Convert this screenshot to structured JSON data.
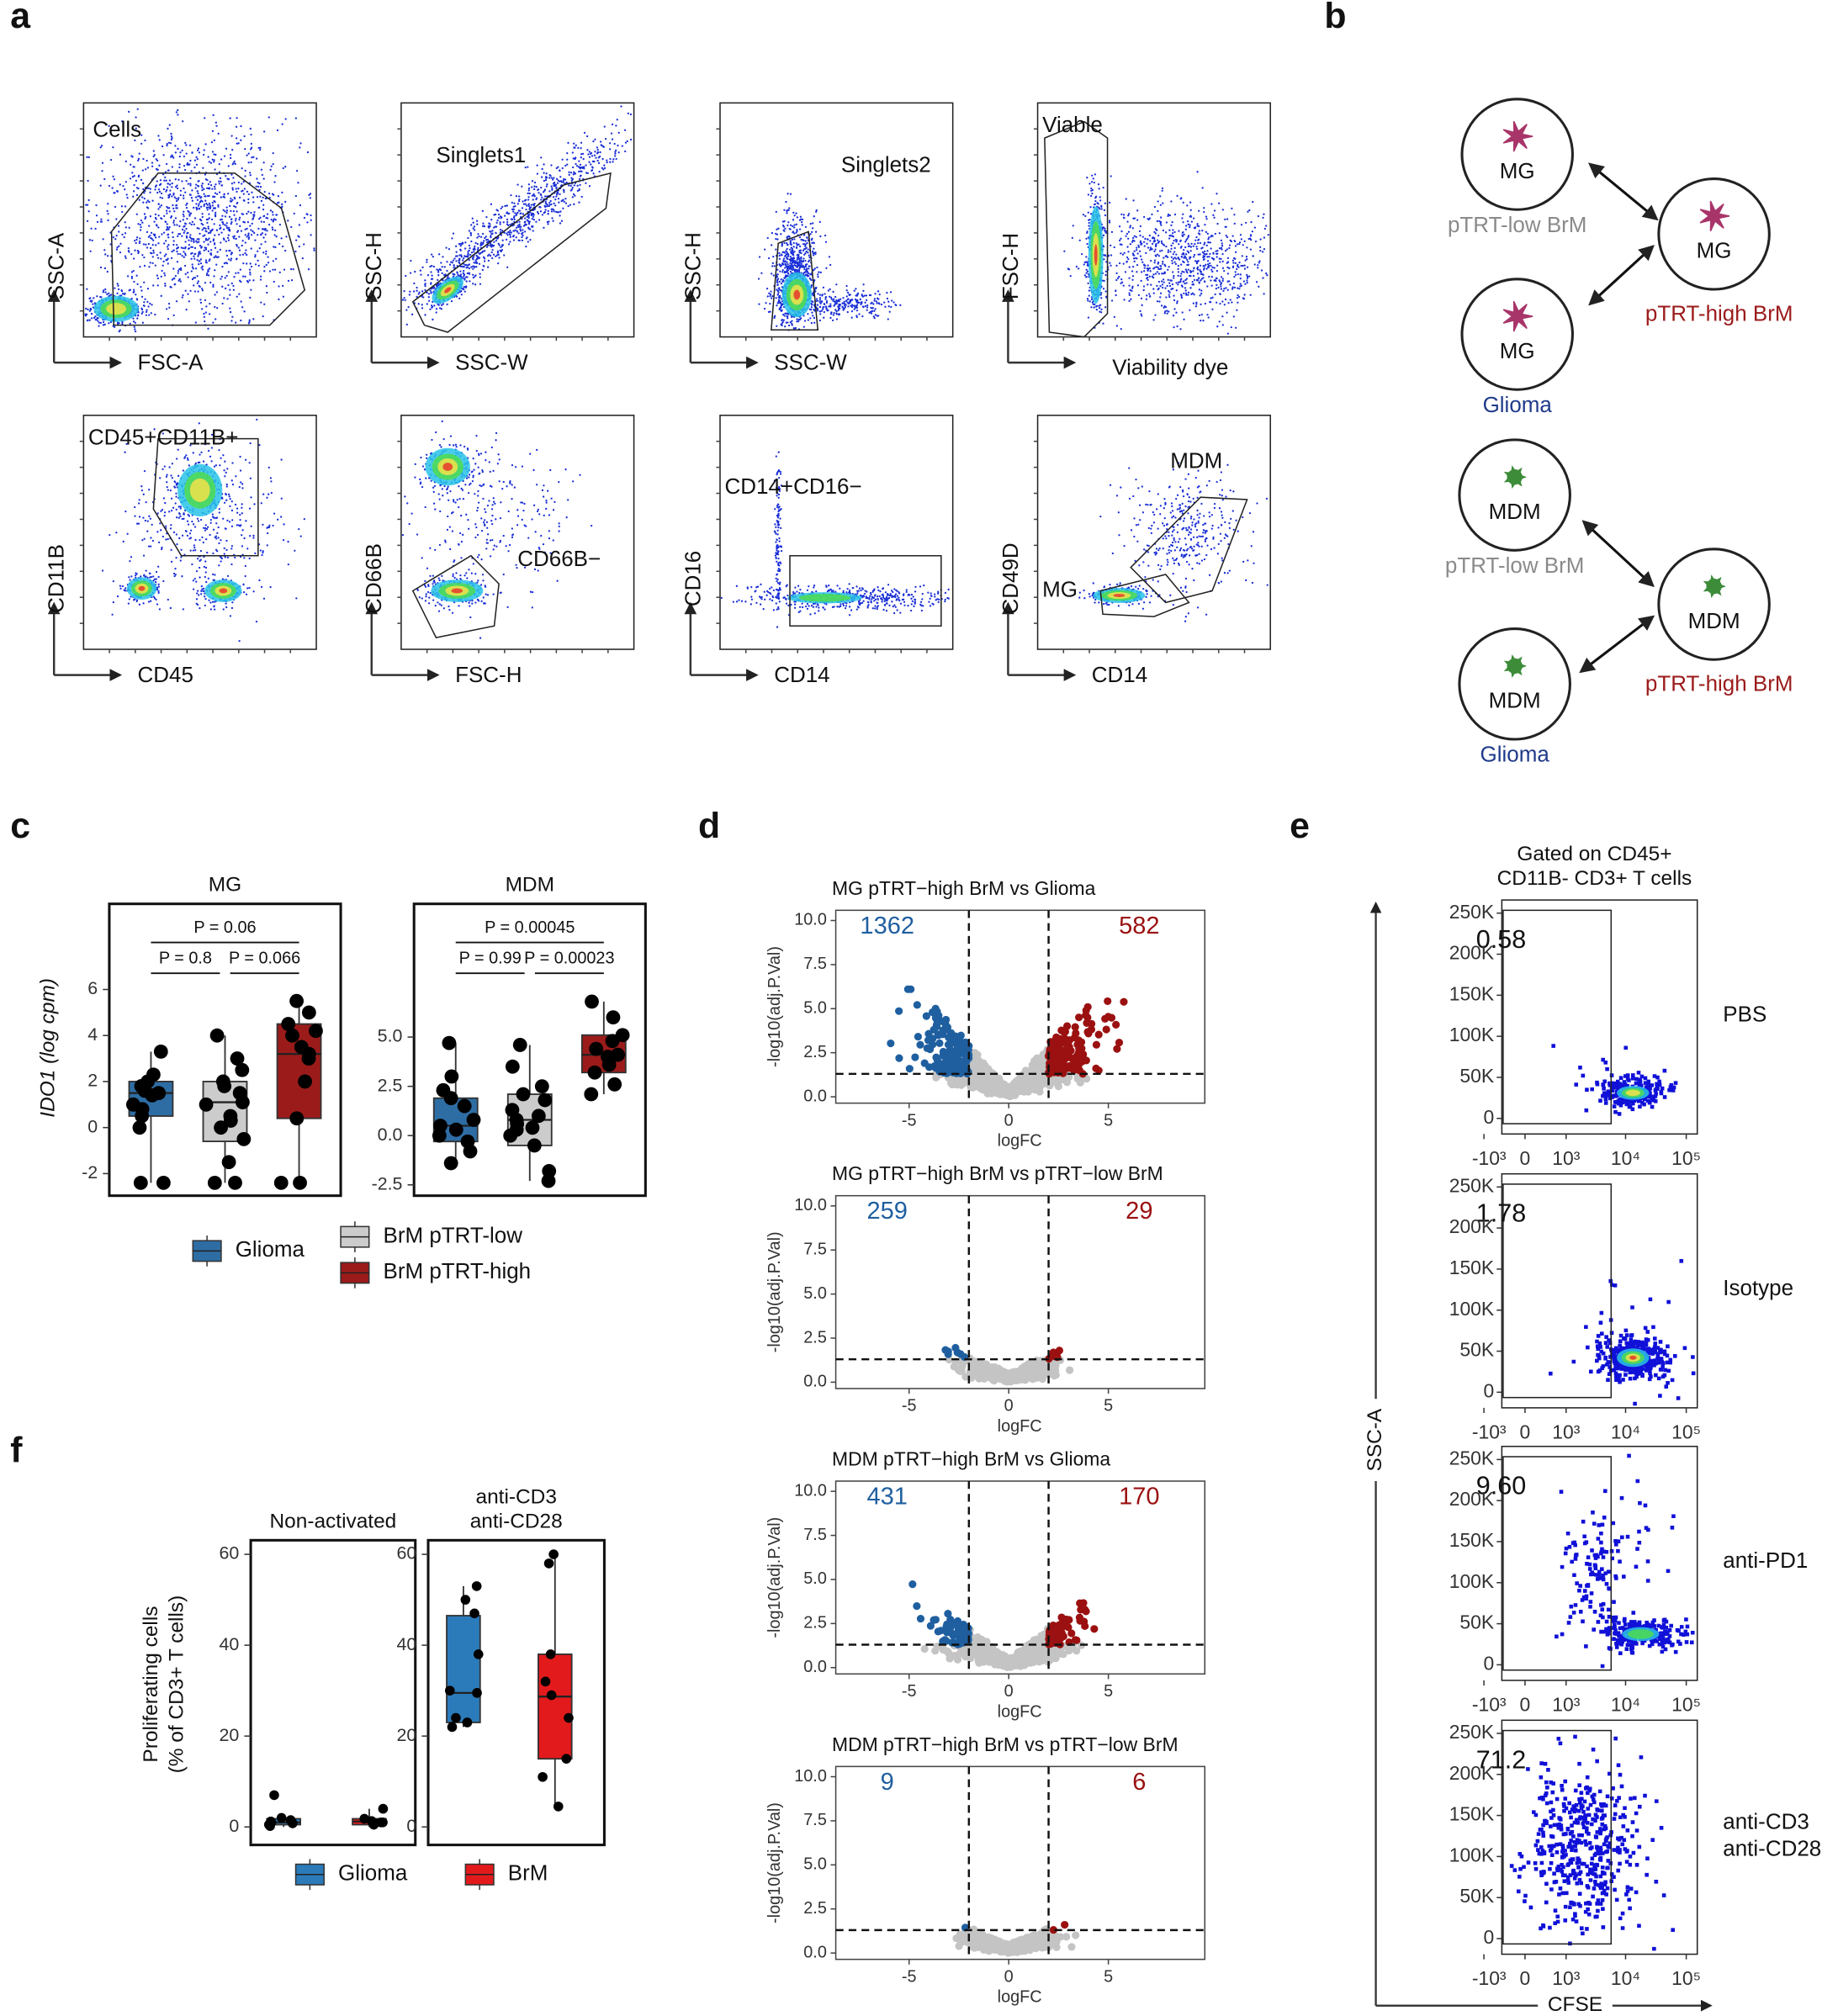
{
  "panel_labels": [
    "a",
    "b",
    "c",
    "d",
    "e",
    "f"
  ],
  "a": {
    "plots": [
      {
        "gates": [
          "Cells"
        ],
        "x_label": "FSC-A",
        "y_label": "SSC-A"
      },
      {
        "gates": [
          "Singlets1"
        ],
        "x_label": "SSC-W",
        "y_label": "SSC-H"
      },
      {
        "gates": [
          "Singlets2"
        ],
        "x_label": "SSC-W",
        "y_label": "SSC-H"
      },
      {
        "gates": [
          "Viable"
        ],
        "x_label": "Viability dye",
        "y_label": "FSC-H"
      },
      {
        "gates": [
          "CD45+CD11B+"
        ],
        "x_label": "CD45",
        "y_label": "CD11B"
      },
      {
        "gates": [
          "CD66B−"
        ],
        "x_label": "FSC-H",
        "y_label": "CD66B"
      },
      {
        "gates": [
          "CD14+CD16−"
        ],
        "x_label": "CD14",
        "y_label": "CD16"
      },
      {
        "gates": [
          "MDM",
          "MG"
        ],
        "x_label": "CD14",
        "y_label": "CD49D"
      }
    ]
  },
  "b": {
    "nodes": [
      {
        "cell": "MG",
        "group": "pTRT-low BrM"
      },
      {
        "cell": "MG",
        "group": "pTRT-high BrM"
      },
      {
        "cell": "MG",
        "group": "Glioma"
      },
      {
        "cell": "MDM",
        "group": "pTRT-low BrM"
      },
      {
        "cell": "MDM",
        "group": "pTRT-high BrM"
      },
      {
        "cell": "MDM",
        "group": "Glioma"
      }
    ]
  },
  "c": {
    "chart_data": {
      "type": "box",
      "y_label": "IDO1 (log cpm)",
      "groups": [
        {
          "name": "Glioma",
          "color": "#2e6da4"
        },
        {
          "name": "BrM pTRT-low",
          "color": "#cccccc"
        },
        {
          "name": "BrM pTRT-high",
          "color": "#9b1b1b"
        }
      ],
      "facets": [
        {
          "title": [
            "MG"
          ],
          "ylim": [
            -2.96,
            9.72
          ],
          "yticks": [
            -2,
            0,
            2,
            4,
            6
          ],
          "comparisons": [
            {
              "label": "P = 0.06"
            },
            {
              "label": "P = 0.8"
            },
            {
              "label": "P = 0.066"
            }
          ],
          "boxes": [
            {
              "q1": 0.5,
              "median": 1.5,
              "q3": 2.0,
              "low": -2.4,
              "high": 3.3,
              "points": [
                -2.4,
                -2.4,
                0,
                0.5,
                0.8,
                1,
                1.4,
                1.5,
                1.6,
                1.8,
                2.0,
                2.3,
                3.3
              ]
            },
            {
              "q1": -0.6,
              "median": 1.1,
              "q3": 2.0,
              "low": -2.4,
              "high": 4.0,
              "points": [
                -2.4,
                -2.4,
                -1.5,
                -0.5,
                0,
                0.3,
                0.5,
                1,
                1.1,
                1.5,
                1.8,
                2,
                2.5,
                3,
                4
              ]
            },
            {
              "q1": 0.4,
              "median": 3.2,
              "q3": 4.5,
              "low": -2.4,
              "high": 5.5,
              "points": [
                -2.4,
                -2.4,
                0.4,
                2,
                3,
                3.2,
                3.5,
                4,
                4.2,
                4.5,
                5,
                5.5
              ]
            }
          ]
        },
        {
          "title": [
            "MDM"
          ],
          "ylim": [
            -3.05,
            11.76
          ],
          "yticks": [
            {
              "value": -2.5,
              "label": "-2.5"
            },
            {
              "value": 0,
              "label": "0.0"
            },
            2.5,
            {
              "value": 5,
              "label": "5.0"
            }
          ],
          "comparisons": [
            {
              "label": "P = 0.00045"
            },
            {
              "label": "P = 0.99"
            },
            {
              "label": "P = 0.00023"
            }
          ],
          "boxes": [
            {
              "q1": -0.3,
              "median": 0.5,
              "q3": 1.9,
              "low": -1.4,
              "high": 4.7,
              "points": [
                -1.4,
                -0.8,
                -0.3,
                0,
                0.3,
                0.5,
                0.8,
                1.5,
                1.9,
                2.3,
                3,
                4.7
              ]
            },
            {
              "q1": -0.5,
              "median": 0.8,
              "q3": 2.1,
              "low": -2.3,
              "high": 4.6,
              "points": [
                -2.3,
                -1.8,
                -0.5,
                0,
                0.3,
                0.4,
                0.6,
                0.8,
                1,
                1.3,
                1.8,
                2.1,
                2.5,
                3.5,
                4.6
              ]
            },
            {
              "q1": 3.2,
              "median": 4.1,
              "q3": 5.1,
              "low": 2.1,
              "high": 6.8,
              "points": [
                2.1,
                2.6,
                3.2,
                3.6,
                4,
                4.1,
                4.4,
                4.8,
                5.1,
                6,
                6.8
              ]
            }
          ]
        }
      ]
    }
  },
  "d": {
    "x_label": "logFC",
    "y_label": "-log10(adj.P.Val)",
    "xlim": [
      -8.68,
      9.84
    ],
    "ylim": [
      -0.36,
      10.58
    ],
    "xticks": [
      -5,
      0,
      5
    ],
    "yticks": [
      {
        "value": 0,
        "label": "0.0"
      },
      2.5,
      {
        "value": 5,
        "label": "5.0"
      },
      7.5,
      {
        "value": 10,
        "label": "10.0"
      }
    ],
    "thresholds": {
      "x": [
        -2,
        2
      ],
      "y": 1.3
    },
    "colors": {
      "down": "#1f5fa0",
      "up": "#9b1010",
      "ns": "#c4c4c4"
    },
    "plots": [
      {
        "title": "MG pTRT−high BrM vs Glioma",
        "down_count": "1362",
        "up_count": "582"
      },
      {
        "title": "MG pTRT−high BrM vs pTRT−low BrM",
        "down_count": "259",
        "up_count": "29"
      },
      {
        "title": "MDM pTRT−high BrM vs Glioma",
        "down_count": "431",
        "up_count": "170"
      },
      {
        "title": "MDM pTRT−high BrM vs pTRT−low BrM",
        "down_count": "9",
        "up_count": "6"
      }
    ]
  },
  "e": {
    "title": [
      "Gated on CD45+",
      "CD11B- CD3+ T cells"
    ],
    "y_label": "SSC-A",
    "x_label": "CFSE",
    "xscale": {
      "type": "asinh",
      "cofactor": 440
    },
    "xlim": [
      -439,
      152000
    ],
    "ylim": [
      -19000,
      266000
    ],
    "xticks": [
      {
        "value": -1000,
        "label": "-10³"
      },
      0,
      {
        "value": 1000,
        "label": "10³"
      },
      {
        "value": 10000,
        "label": "10⁴"
      },
      {
        "value": 100000,
        "label": "10⁵"
      }
    ],
    "yticks": [
      0,
      {
        "value": 50000,
        "label": "50K"
      },
      {
        "value": 100000,
        "label": "100K"
      },
      {
        "value": 150000,
        "label": "150K"
      },
      {
        "value": 200000,
        "label": "200K"
      },
      {
        "value": 250000,
        "label": "250K"
      }
    ],
    "plots": [
      {
        "condition": [
          "PBS"
        ],
        "gate_value": "0.58"
      },
      {
        "condition": [
          "Isotype"
        ],
        "gate_value": "1.78"
      },
      {
        "condition": [
          "anti-PD1"
        ],
        "gate_value": "9.60"
      },
      {
        "condition": [
          "anti-CD3",
          "anti-CD28"
        ],
        "gate_value": "71.2"
      }
    ]
  },
  "f": {
    "chart_data": {
      "type": "box",
      "y_label": [
        "Proliferating cells",
        "(% of CD3+ T cells)"
      ],
      "ylim": [
        -3.96,
        63.1
      ],
      "yticks": [
        0,
        20,
        40,
        60
      ],
      "groups": [
        {
          "name": "Glioma",
          "color": "#2b7bba"
        },
        {
          "name": "BrM",
          "color": "#e31a1c"
        }
      ],
      "facets": [
        {
          "title": [
            "Non-activated"
          ],
          "boxes": [
            {
              "q1": 0.5,
              "median": 1.0,
              "q3": 1.8,
              "low": 0,
              "high": 2.5,
              "points": [
                0.2,
                0.5,
                0.8,
                1.0,
                1.2,
                1.5,
                2.0,
                7.0
              ]
            },
            {
              "q1": 0.5,
              "median": 1.2,
              "q3": 1.8,
              "low": 0,
              "high": 4.0,
              "points": [
                0.5,
                0.8,
                1.0,
                1.0,
                1.3,
                1.8,
                4.0
              ]
            }
          ]
        },
        {
          "title": [
            "anti-CD3",
            "anti-CD28"
          ],
          "boxes": [
            {
              "q1": 23,
              "median": 29.5,
              "q3": 46.5,
              "low": 22,
              "high": 53,
              "points": [
                22,
                23,
                24,
                29.5,
                30,
                38,
                47,
                50,
                53
              ]
            },
            {
              "q1": 15,
              "median": 28.7,
              "q3": 38,
              "low": 4.5,
              "high": 60,
              "points": [
                4.5,
                11,
                15,
                24,
                29,
                32,
                38,
                58,
                60
              ]
            }
          ]
        }
      ]
    }
  }
}
